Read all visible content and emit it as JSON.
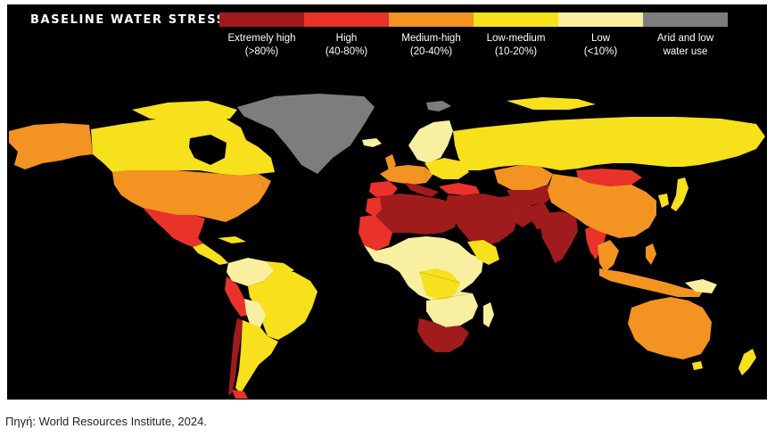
{
  "map": {
    "title": "BASELINE WATER STRESS",
    "legend": [
      {
        "line1": "Extremely high",
        "line2": "(>80%)",
        "color": "#a01b1b"
      },
      {
        "line1": "High",
        "line2": "(40-80%)",
        "color": "#e8322a"
      },
      {
        "line1": "Medium-high",
        "line2": "(20-40%)",
        "color": "#f39322"
      },
      {
        "line1": "Low-medium",
        "line2": "(10-20%)",
        "color": "#f7e01c"
      },
      {
        "line1": "Low",
        "line2": "(<10%)",
        "color": "#f8f0a0"
      },
      {
        "line1": "Arid and low",
        "line2": "water use",
        "color": "#7d7d7d"
      }
    ],
    "background_color": "#000000"
  },
  "source": {
    "text": "Πηγή: World Resources Institute, 2024."
  }
}
